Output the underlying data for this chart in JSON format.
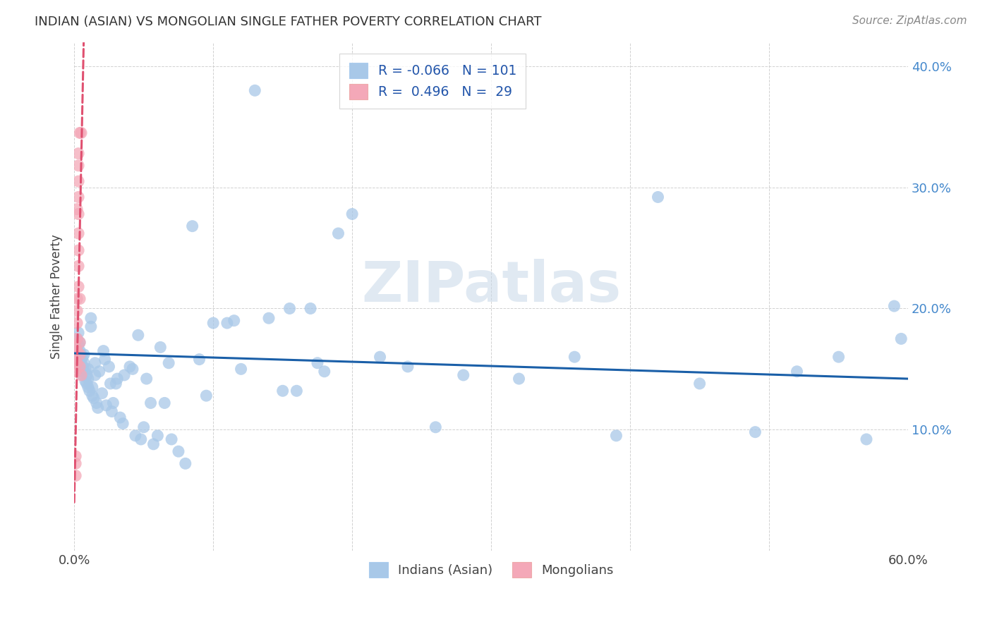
{
  "title": "INDIAN (ASIAN) VS MONGOLIAN SINGLE FATHER POVERTY CORRELATION CHART",
  "source": "Source: ZipAtlas.com",
  "ylabel": "Single Father Poverty",
  "xlim": [
    0.0,
    0.6
  ],
  "ylim": [
    0.0,
    0.42
  ],
  "xtick_positions": [
    0.0,
    0.1,
    0.2,
    0.3,
    0.4,
    0.5,
    0.6
  ],
  "xtick_labels": [
    "0.0%",
    "",
    "",
    "",
    "",
    "",
    "60.0%"
  ],
  "ytick_positions": [
    0.0,
    0.1,
    0.2,
    0.3,
    0.4
  ],
  "ytick_labels_right": [
    "",
    "10.0%",
    "20.0%",
    "30.0%",
    "40.0%"
  ],
  "legend_labels": [
    "Indians (Asian)",
    "Mongolians"
  ],
  "r_indian": -0.066,
  "n_indian": 101,
  "r_mongolian": 0.496,
  "n_mongolian": 29,
  "indian_color": "#a8c8e8",
  "mongolian_color": "#f4a8b8",
  "trend_indian_color": "#1a5fa8",
  "trend_mongolian_color": "#e05070",
  "watermark": "ZIPatlas",
  "background_color": "#ffffff",
  "indian_x": [
    0.001,
    0.001,
    0.002,
    0.002,
    0.002,
    0.003,
    0.003,
    0.003,
    0.003,
    0.004,
    0.004,
    0.004,
    0.005,
    0.005,
    0.005,
    0.005,
    0.006,
    0.006,
    0.006,
    0.007,
    0.007,
    0.007,
    0.008,
    0.008,
    0.009,
    0.009,
    0.01,
    0.01,
    0.01,
    0.011,
    0.012,
    0.012,
    0.013,
    0.013,
    0.014,
    0.015,
    0.015,
    0.016,
    0.017,
    0.018,
    0.02,
    0.021,
    0.022,
    0.023,
    0.025,
    0.026,
    0.027,
    0.028,
    0.03,
    0.031,
    0.033,
    0.035,
    0.036,
    0.04,
    0.042,
    0.044,
    0.046,
    0.048,
    0.05,
    0.052,
    0.055,
    0.057,
    0.06,
    0.062,
    0.065,
    0.068,
    0.07,
    0.075,
    0.08,
    0.085,
    0.09,
    0.095,
    0.1,
    0.11,
    0.115,
    0.12,
    0.13,
    0.14,
    0.15,
    0.155,
    0.16,
    0.17,
    0.175,
    0.18,
    0.19,
    0.2,
    0.22,
    0.24,
    0.26,
    0.28,
    0.32,
    0.36,
    0.39,
    0.42,
    0.45,
    0.49,
    0.52,
    0.55,
    0.57,
    0.59,
    0.595
  ],
  "indian_y": [
    0.17,
    0.155,
    0.165,
    0.16,
    0.175,
    0.155,
    0.162,
    0.17,
    0.18,
    0.158,
    0.165,
    0.172,
    0.148,
    0.155,
    0.162,
    0.158,
    0.145,
    0.152,
    0.16,
    0.148,
    0.155,
    0.162,
    0.14,
    0.15,
    0.138,
    0.145,
    0.135,
    0.142,
    0.15,
    0.132,
    0.185,
    0.192,
    0.128,
    0.135,
    0.126,
    0.145,
    0.155,
    0.122,
    0.118,
    0.148,
    0.13,
    0.165,
    0.158,
    0.12,
    0.152,
    0.138,
    0.115,
    0.122,
    0.138,
    0.142,
    0.11,
    0.105,
    0.145,
    0.152,
    0.15,
    0.095,
    0.178,
    0.092,
    0.102,
    0.142,
    0.122,
    0.088,
    0.095,
    0.168,
    0.122,
    0.155,
    0.092,
    0.082,
    0.072,
    0.268,
    0.158,
    0.128,
    0.188,
    0.188,
    0.19,
    0.15,
    0.38,
    0.192,
    0.132,
    0.2,
    0.132,
    0.2,
    0.155,
    0.148,
    0.262,
    0.278,
    0.16,
    0.152,
    0.102,
    0.145,
    0.142,
    0.16,
    0.095,
    0.292,
    0.138,
    0.098,
    0.148,
    0.16,
    0.092,
    0.202,
    0.175
  ],
  "mongolian_x": [
    0.001,
    0.001,
    0.001,
    0.001,
    0.001,
    0.001,
    0.002,
    0.002,
    0.002,
    0.002,
    0.002,
    0.002,
    0.002,
    0.003,
    0.003,
    0.003,
    0.003,
    0.003,
    0.003,
    0.003,
    0.003,
    0.003,
    0.004,
    0.004,
    0.004,
    0.004,
    0.004,
    0.005,
    0.005
  ],
  "mongolian_y": [
    0.078,
    0.072,
    0.062,
    0.148,
    0.158,
    0.168,
    0.155,
    0.165,
    0.175,
    0.188,
    0.198,
    0.208,
    0.282,
    0.218,
    0.235,
    0.248,
    0.262,
    0.278,
    0.292,
    0.305,
    0.318,
    0.328,
    0.152,
    0.162,
    0.172,
    0.208,
    0.345,
    0.145,
    0.345
  ],
  "trend_indian_x0": 0.0,
  "trend_indian_x1": 0.6,
  "trend_indian_y0": 0.163,
  "trend_indian_y1": 0.142,
  "trend_mongolian_x0": 0.0,
  "trend_mongolian_x1": 0.0068,
  "trend_mongolian_y0": 0.04,
  "trend_mongolian_y1": 0.42
}
